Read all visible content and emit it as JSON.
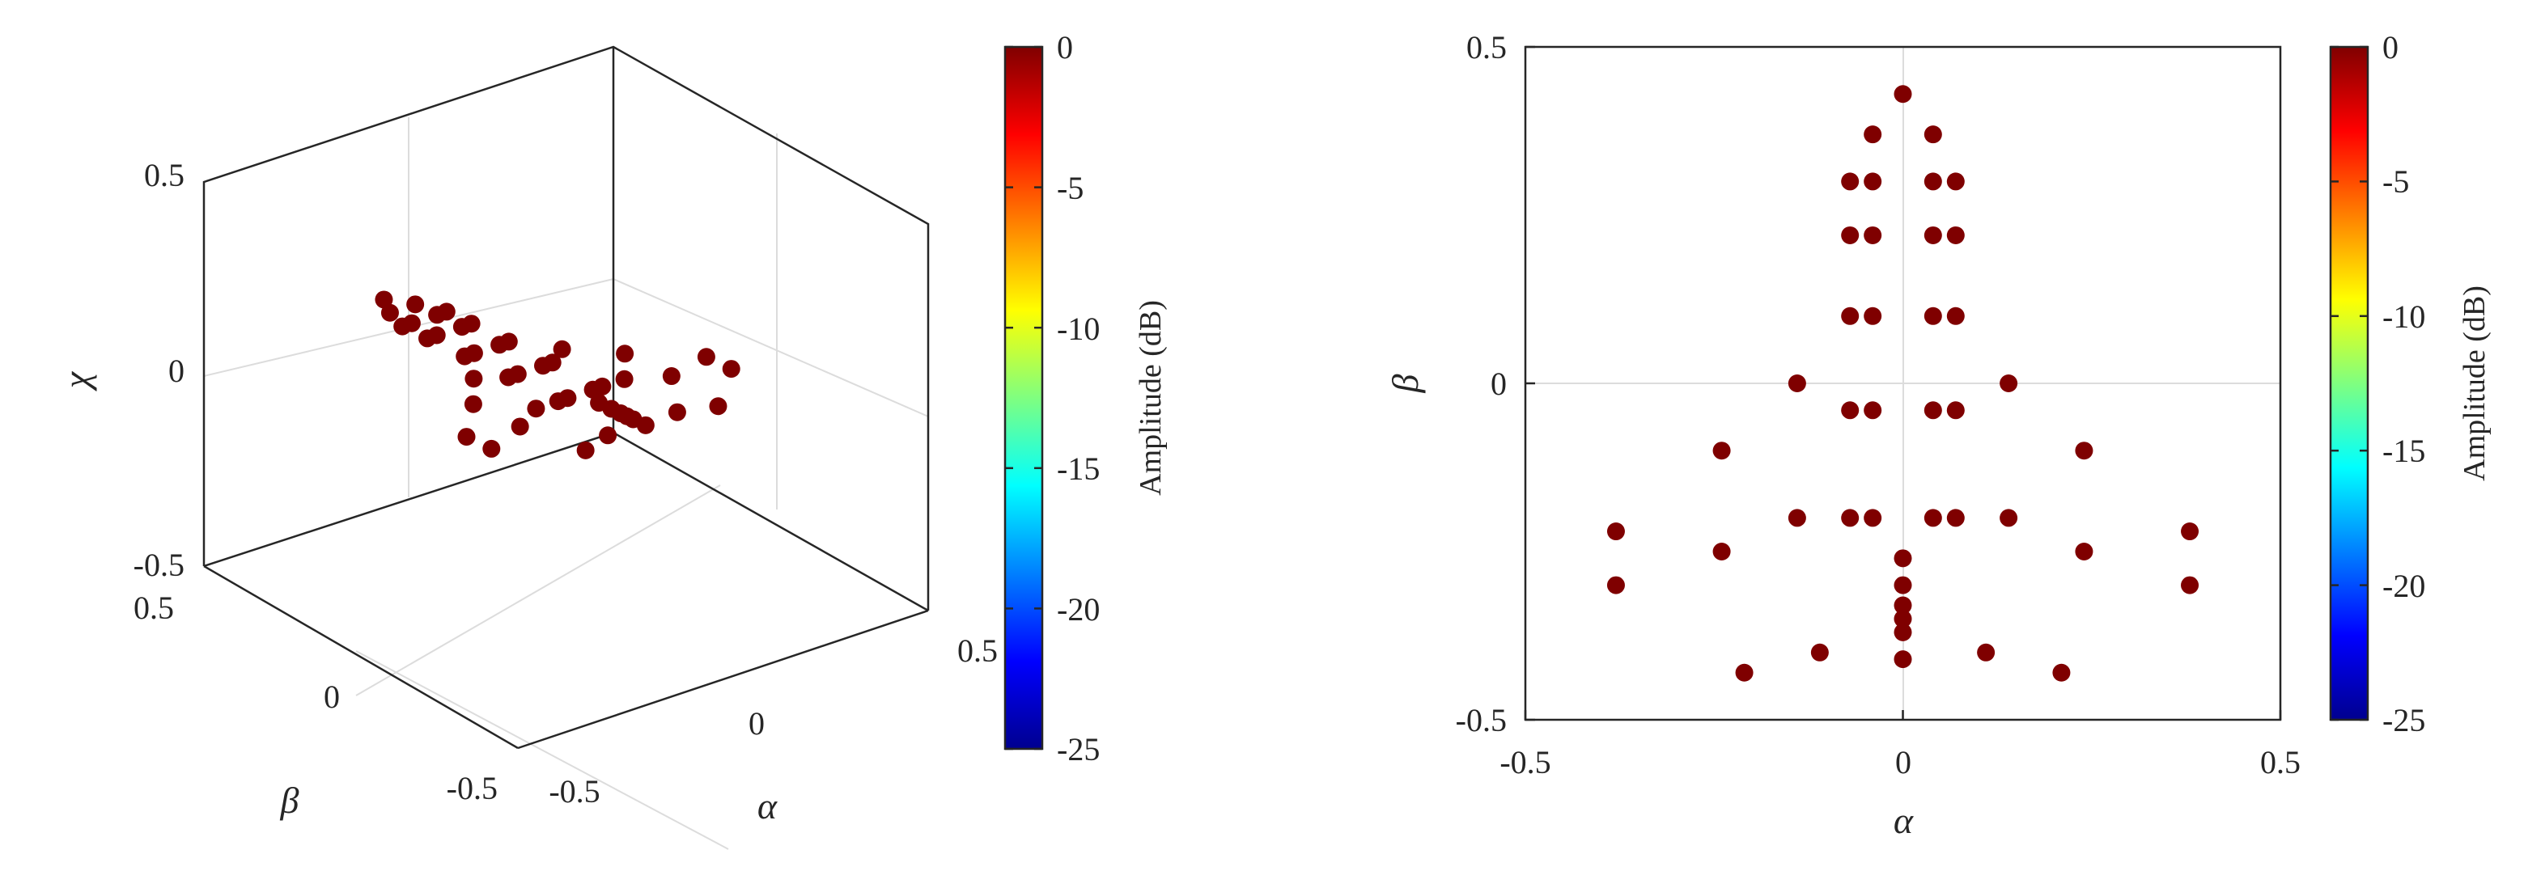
{
  "chart_data": [
    {
      "type": "scatter3d",
      "view": "3d",
      "xlabel": "α",
      "ylabel": "β",
      "zlabel": "χ",
      "xlim": [
        -0.5,
        0.5
      ],
      "ylim": [
        -0.5,
        0.5
      ],
      "zlim": [
        -0.5,
        0.5
      ],
      "xticks": [
        "-0.5",
        "0",
        "0.5"
      ],
      "yticks": [
        "-0.5",
        "0",
        "0.5"
      ],
      "zticks": [
        "-0.5",
        "0",
        "0.5"
      ],
      "grid": true,
      "marker_color": "#7f0000",
      "points": [
        {
          "x": 0,
          "y": 0.43,
          "z": 0
        },
        {
          "x": -0.04,
          "y": 0.37,
          "z": 0
        },
        {
          "x": 0.04,
          "y": 0.37,
          "z": 0
        },
        {
          "x": -0.07,
          "y": 0.3,
          "z": 0
        },
        {
          "x": -0.04,
          "y": 0.3,
          "z": 0
        },
        {
          "x": 0.04,
          "y": 0.3,
          "z": 0
        },
        {
          "x": 0.07,
          "y": 0.3,
          "z": 0
        },
        {
          "x": -0.07,
          "y": 0.22,
          "z": 0
        },
        {
          "x": -0.04,
          "y": 0.22,
          "z": 0
        },
        {
          "x": 0.04,
          "y": 0.22,
          "z": 0
        },
        {
          "x": 0.07,
          "y": 0.22,
          "z": 0
        },
        {
          "x": -0.07,
          "y": 0.1,
          "z": 0
        },
        {
          "x": -0.04,
          "y": 0.1,
          "z": 0
        },
        {
          "x": 0.04,
          "y": 0.1,
          "z": 0
        },
        {
          "x": 0.07,
          "y": 0.1,
          "z": 0
        },
        {
          "x": -0.14,
          "y": 0,
          "z": 0
        },
        {
          "x": 0.14,
          "y": 0,
          "z": 0
        },
        {
          "x": -0.07,
          "y": -0.04,
          "z": 0
        },
        {
          "x": -0.04,
          "y": -0.04,
          "z": 0
        },
        {
          "x": 0.04,
          "y": -0.04,
          "z": 0
        },
        {
          "x": 0.07,
          "y": -0.04,
          "z": 0
        },
        {
          "x": -0.24,
          "y": -0.1,
          "z": 0
        },
        {
          "x": 0.24,
          "y": -0.1,
          "z": 0
        },
        {
          "x": -0.14,
          "y": -0.2,
          "z": 0
        },
        {
          "x": -0.07,
          "y": -0.2,
          "z": 0
        },
        {
          "x": -0.04,
          "y": -0.2,
          "z": 0
        },
        {
          "x": 0.04,
          "y": -0.2,
          "z": 0
        },
        {
          "x": 0.07,
          "y": -0.2,
          "z": 0
        },
        {
          "x": 0.14,
          "y": -0.2,
          "z": 0
        },
        {
          "x": -0.38,
          "y": -0.22,
          "z": 0
        },
        {
          "x": 0.38,
          "y": -0.22,
          "z": 0
        },
        {
          "x": -0.24,
          "y": -0.25,
          "z": 0
        },
        {
          "x": 0.24,
          "y": -0.25,
          "z": 0
        },
        {
          "x": 0,
          "y": -0.26,
          "z": 0
        },
        {
          "x": -0.38,
          "y": -0.3,
          "z": 0
        },
        {
          "x": 0.38,
          "y": -0.3,
          "z": 0
        },
        {
          "x": 0,
          "y": -0.3,
          "z": 0
        },
        {
          "x": 0,
          "y": -0.33,
          "z": 0
        },
        {
          "x": 0,
          "y": -0.35,
          "z": 0
        },
        {
          "x": 0,
          "y": -0.37,
          "z": 0
        },
        {
          "x": -0.11,
          "y": -0.4,
          "z": 0
        },
        {
          "x": 0.11,
          "y": -0.4,
          "z": 0
        },
        {
          "x": 0,
          "y": -0.41,
          "z": 0
        },
        {
          "x": -0.21,
          "y": -0.43,
          "z": 0
        },
        {
          "x": 0.21,
          "y": -0.43,
          "z": 0
        }
      ],
      "colorbar": {
        "label": "Amplitude (dB)",
        "range": [
          -25,
          0
        ],
        "ticks": [
          "0",
          "-5",
          "-10",
          "-15",
          "-20",
          "-25"
        ],
        "colormap": "jet"
      }
    },
    {
      "type": "scatter",
      "view": "top",
      "xlabel": "α",
      "ylabel": "β",
      "xlim": [
        -0.5,
        0.5
      ],
      "ylim": [
        -0.5,
        0.5
      ],
      "xticks": [
        "-0.5",
        "0",
        "0.5"
      ],
      "yticks": [
        "-0.5",
        "0",
        "0.5"
      ],
      "grid": true,
      "marker_color": "#7f0000",
      "points": [
        {
          "x": 0,
          "y": 0.43
        },
        {
          "x": -0.04,
          "y": 0.37
        },
        {
          "x": 0.04,
          "y": 0.37
        },
        {
          "x": -0.07,
          "y": 0.3
        },
        {
          "x": -0.04,
          "y": 0.3
        },
        {
          "x": 0.04,
          "y": 0.3
        },
        {
          "x": 0.07,
          "y": 0.3
        },
        {
          "x": -0.07,
          "y": 0.22
        },
        {
          "x": -0.04,
          "y": 0.22
        },
        {
          "x": 0.04,
          "y": 0.22
        },
        {
          "x": 0.07,
          "y": 0.22
        },
        {
          "x": -0.07,
          "y": 0.1
        },
        {
          "x": -0.04,
          "y": 0.1
        },
        {
          "x": 0.04,
          "y": 0.1
        },
        {
          "x": 0.07,
          "y": 0.1
        },
        {
          "x": -0.14,
          "y": 0
        },
        {
          "x": 0.14,
          "y": 0
        },
        {
          "x": -0.07,
          "y": -0.04
        },
        {
          "x": -0.04,
          "y": -0.04
        },
        {
          "x": 0.04,
          "y": -0.04
        },
        {
          "x": 0.07,
          "y": -0.04
        },
        {
          "x": -0.24,
          "y": -0.1
        },
        {
          "x": 0.24,
          "y": -0.1
        },
        {
          "x": -0.14,
          "y": -0.2
        },
        {
          "x": -0.07,
          "y": -0.2
        },
        {
          "x": -0.04,
          "y": -0.2
        },
        {
          "x": 0.04,
          "y": -0.2
        },
        {
          "x": 0.07,
          "y": -0.2
        },
        {
          "x": 0.14,
          "y": -0.2
        },
        {
          "x": -0.38,
          "y": -0.22
        },
        {
          "x": 0.38,
          "y": -0.22
        },
        {
          "x": -0.24,
          "y": -0.25
        },
        {
          "x": 0.24,
          "y": -0.25
        },
        {
          "x": 0,
          "y": -0.26
        },
        {
          "x": -0.38,
          "y": -0.3
        },
        {
          "x": 0.38,
          "y": -0.3
        },
        {
          "x": 0,
          "y": -0.3
        },
        {
          "x": 0,
          "y": -0.33
        },
        {
          "x": 0,
          "y": -0.35
        },
        {
          "x": 0,
          "y": -0.37
        },
        {
          "x": -0.11,
          "y": -0.4
        },
        {
          "x": 0.11,
          "y": -0.4
        },
        {
          "x": 0,
          "y": -0.41
        },
        {
          "x": -0.21,
          "y": -0.43
        },
        {
          "x": 0.21,
          "y": -0.43
        }
      ],
      "colorbar": {
        "label": "Amplitude (dB)",
        "range": [
          -25,
          0
        ],
        "ticks": [
          "0",
          "-5",
          "-10",
          "-15",
          "-20",
          "-25"
        ],
        "colormap": "jet"
      }
    }
  ]
}
